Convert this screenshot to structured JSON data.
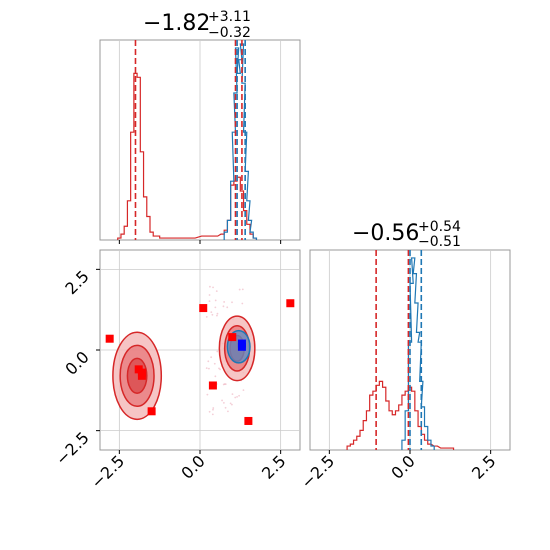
{
  "chart_data": [
    {
      "type": "histogram",
      "panel": "top-left",
      "title_value": "−1.82",
      "title_plus": "+3.11",
      "title_minus": "−0.32",
      "xlim": [
        -3.1,
        3.1
      ],
      "grid": true,
      "colors": {
        "red": "#d62728",
        "blue": "#1f77b4"
      },
      "vlines_red": [
        -2.0,
        1.1,
        1.3
      ],
      "vlines_blue": [
        1.15,
        1.4
      ],
      "series": [
        {
          "color": "red",
          "bins": [
            [
              -2.5,
              0.01
            ],
            [
              -2.4,
              0.03
            ],
            [
              -2.3,
              0.07
            ],
            [
              -2.2,
              0.2
            ],
            [
              -2.1,
              0.55
            ],
            [
              -2.0,
              0.85
            ],
            [
              -1.9,
              0.83
            ],
            [
              -1.8,
              0.45
            ],
            [
              -1.7,
              0.22
            ],
            [
              -1.6,
              0.12
            ],
            [
              -1.5,
              0.04
            ],
            [
              -1.4,
              0.02
            ],
            [
              -1.3,
              0.02
            ],
            [
              -1.2,
              0.01
            ],
            [
              -1.1,
              0.01
            ],
            [
              -1.0,
              0.01
            ],
            [
              -0.5,
              0.01
            ],
            [
              -0.2,
              0.01
            ],
            [
              0.1,
              0.02
            ],
            [
              0.3,
              0.02
            ],
            [
              0.5,
              0.02
            ],
            [
              0.7,
              0.03
            ],
            [
              0.8,
              0.05
            ],
            [
              0.9,
              0.1
            ],
            [
              1.0,
              0.28
            ],
            [
              1.1,
              0.3
            ],
            [
              1.2,
              0.32
            ],
            [
              1.3,
              0.25
            ],
            [
              1.4,
              0.15
            ],
            [
              1.5,
              0.08
            ],
            [
              1.6,
              0.03
            ],
            [
              1.7,
              0.01
            ]
          ]
        },
        {
          "color": "blue",
          "bins": [
            [
              0.8,
              0.04
            ],
            [
              0.9,
              0.1
            ],
            [
              1.0,
              0.3
            ],
            [
              1.05,
              0.55
            ],
            [
              1.1,
              0.75
            ],
            [
              1.15,
              0.98
            ],
            [
              1.2,
              0.85
            ],
            [
              1.25,
              0.92
            ],
            [
              1.3,
              1.0
            ],
            [
              1.35,
              0.8
            ],
            [
              1.4,
              0.55
            ],
            [
              1.45,
              0.35
            ],
            [
              1.5,
              0.2
            ],
            [
              1.55,
              0.1
            ],
            [
              1.6,
              0.04
            ],
            [
              1.7,
              0.01
            ]
          ]
        }
      ]
    },
    {
      "type": "scatter",
      "panel": "bottom-left",
      "xlim": [
        -3.1,
        3.1
      ],
      "ylim": [
        -3.1,
        3.1
      ],
      "xticks": [
        "−2.5",
        "0.0",
        "2.5"
      ],
      "yticks": [
        "2.5",
        "0.0",
        "−2.5"
      ],
      "grid": true,
      "red_markers": [
        [
          -2.8,
          0.35
        ],
        [
          -1.9,
          -0.6
        ],
        [
          -1.8,
          -0.7
        ],
        [
          -1.8,
          -0.8
        ],
        [
          -1.5,
          -1.9
        ],
        [
          0.1,
          1.3
        ],
        [
          0.4,
          -1.1
        ],
        [
          1.0,
          0.4
        ],
        [
          1.5,
          -2.2
        ],
        [
          2.8,
          1.45
        ]
      ],
      "blue_markers": [
        [
          1.3,
          0.1
        ],
        [
          1.3,
          0.2
        ]
      ],
      "contours_red": [
        {
          "cx": -1.95,
          "cy": -0.8,
          "rx": 0.75,
          "ry": 1.35,
          "level": 3
        },
        {
          "cx": 1.15,
          "cy": 0.05,
          "rx": 0.55,
          "ry": 1.0,
          "level": 3
        }
      ],
      "contour_blue": {
        "cx": 1.2,
        "cy": 0.1,
        "rx": 0.35,
        "ry": 0.5
      }
    },
    {
      "type": "histogram",
      "panel": "bottom-right",
      "title_value": "−0.56",
      "title_plus": "+0.54",
      "title_minus": "−0.51",
      "xlim": [
        -3.1,
        3.1
      ],
      "xticks": [
        "−2.5",
        "0.0",
        "2.5"
      ],
      "grid": true,
      "vlines_red": [
        -1.05,
        -0.05
      ],
      "vlines_blue": [
        0.0,
        0.35
      ],
      "series": [
        {
          "color": "red",
          "bins": [
            [
              -1.9,
              0.02
            ],
            [
              -1.8,
              0.03
            ],
            [
              -1.7,
              0.05
            ],
            [
              -1.6,
              0.07
            ],
            [
              -1.5,
              0.1
            ],
            [
              -1.4,
              0.15
            ],
            [
              -1.3,
              0.2
            ],
            [
              -1.2,
              0.28
            ],
            [
              -1.1,
              0.3
            ],
            [
              -1.0,
              0.33
            ],
            [
              -0.9,
              0.35
            ],
            [
              -0.8,
              0.32
            ],
            [
              -0.7,
              0.25
            ],
            [
              -0.6,
              0.2
            ],
            [
              -0.5,
              0.18
            ],
            [
              -0.4,
              0.2
            ],
            [
              -0.3,
              0.23
            ],
            [
              -0.2,
              0.28
            ],
            [
              -0.1,
              0.3
            ],
            [
              0.0,
              0.32
            ],
            [
              0.1,
              0.3
            ],
            [
              0.2,
              0.2
            ],
            [
              0.3,
              0.12
            ],
            [
              0.4,
              0.08
            ],
            [
              0.5,
              0.05
            ],
            [
              0.6,
              0.03
            ],
            [
              0.8,
              0.02
            ],
            [
              1.0,
              0.01
            ],
            [
              1.3,
              0.01
            ]
          ]
        },
        {
          "color": "blue",
          "bins": [
            [
              -0.2,
              0.05
            ],
            [
              -0.1,
              0.2
            ],
            [
              0.0,
              0.55
            ],
            [
              0.05,
              0.85
            ],
            [
              0.1,
              0.98
            ],
            [
              0.15,
              0.9
            ],
            [
              0.2,
              0.75
            ],
            [
              0.25,
              0.6
            ],
            [
              0.3,
              0.55
            ],
            [
              0.35,
              0.35
            ],
            [
              0.4,
              0.22
            ],
            [
              0.5,
              0.12
            ],
            [
              0.6,
              0.05
            ],
            [
              0.7,
              0.02
            ]
          ]
        }
      ]
    }
  ]
}
